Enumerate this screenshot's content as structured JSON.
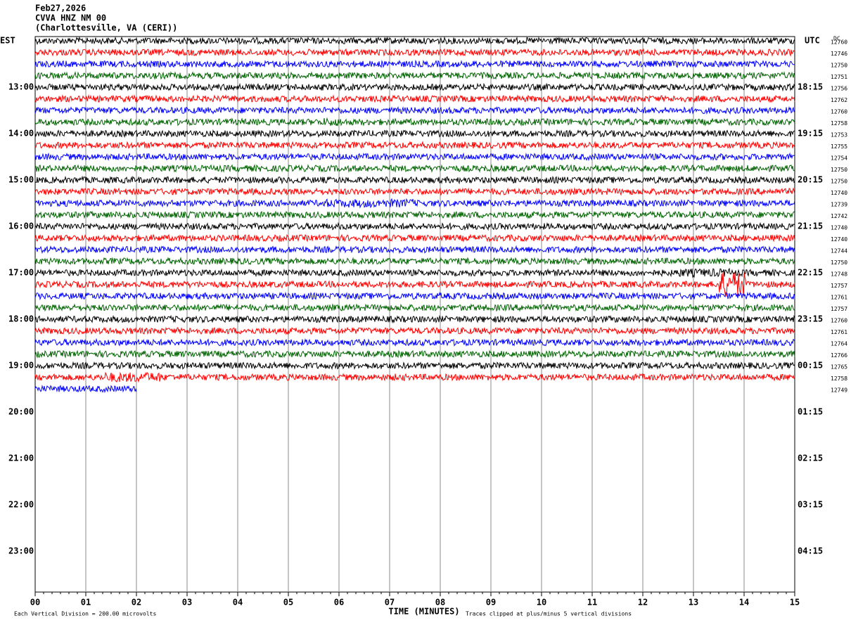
{
  "header": {
    "lines": [
      "Feb27,2026",
      "CVVA HNZ NM 00",
      "(Charlottesville, VA (CERI))"
    ]
  },
  "left_labels": [
    "EST",
    "13:00",
    "14:00",
    "15:00",
    "16:00",
    "17:00",
    "18:00",
    "19:00",
    "20:00",
    "21:00",
    "22:00",
    "23:00"
  ],
  "right_labels": [
    "UTC",
    "18:15",
    "19:15",
    "20:15",
    "21:15",
    "22:15",
    "23:15",
    "00:15",
    "01:15",
    "02:15",
    "03:15",
    "04:15"
  ],
  "dc_title": "DC",
  "dc_values": [
    "12760",
    "12746",
    "12750",
    "12751",
    "12756",
    "12762",
    "12760",
    "12758",
    "12753",
    "12755",
    "12754",
    "12750",
    "12750",
    "12740",
    "12739",
    "12742",
    "12740",
    "12740",
    "12744",
    "12750",
    "12748",
    "12757",
    "12761",
    "12757",
    "12760",
    "12761",
    "12764",
    "12766",
    "12765",
    "12758",
    "12749"
  ],
  "x_ticks": [
    "00",
    "01",
    "02",
    "03",
    "04",
    "05",
    "06",
    "07",
    "08",
    "09",
    "10",
    "11",
    "12",
    "13",
    "14",
    "15"
  ],
  "footer": {
    "scale_note": "Each Vertical Division =  200.00 microvolts",
    "x_title": "TIME (MINUTES)",
    "clip_note": "Traces clipped at plus/minus 5 vertical divisions"
  }
}
